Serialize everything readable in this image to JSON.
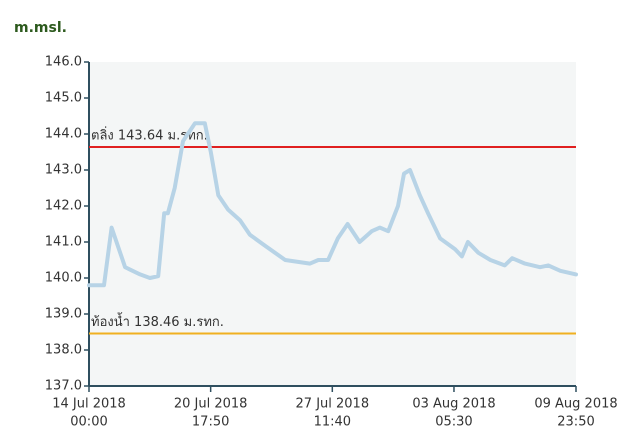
{
  "chart_data": {
    "type": "line",
    "ylabel": "m.msl.",
    "x": [
      "2018-07-14 00:00",
      "2018-07-14 20:00",
      "2018-07-15 06:00",
      "2018-07-16 00:00",
      "2018-07-16 20:00",
      "2018-07-17 09:00",
      "2018-07-17 20:00",
      "2018-07-18 04:00",
      "2018-07-18 09:00",
      "2018-07-18 18:00",
      "2018-07-19 05:00",
      "2018-07-19 21:00",
      "2018-07-20 10:00",
      "2018-07-20 18:00",
      "2018-07-21 04:00",
      "2018-07-21 17:00",
      "2018-07-22 09:00",
      "2018-07-22 22:00",
      "2018-07-23 18:00",
      "2018-07-24 21:00",
      "2018-07-26 06:00",
      "2018-07-26 17:00",
      "2018-07-27 06:00",
      "2018-07-27 19:00",
      "2018-07-28 08:00",
      "2018-07-29 00:00",
      "2018-07-29 16:00",
      "2018-07-30 03:00",
      "2018-07-30 14:00",
      "2018-07-31 03:00",
      "2018-07-31 11:00",
      "2018-07-31 19:00",
      "2018-08-01 08:00",
      "2018-08-01 19:00",
      "2018-08-02 11:00",
      "2018-08-03 07:00",
      "2018-08-03 16:00",
      "2018-08-04 00:00",
      "2018-08-04 14:00",
      "2018-08-05 06:00",
      "2018-08-06 01:00",
      "2018-08-06 11:00",
      "2018-08-07 04:00",
      "2018-08-08 00:00",
      "2018-08-08 11:00",
      "2018-08-09 03:00",
      "2018-08-09 23:50"
    ],
    "series": [
      {
        "color": "#b7d3e6",
        "values": [
          139.8,
          139.8,
          141.4,
          140.3,
          140.1,
          140.0,
          140.05,
          141.8,
          141.8,
          142.5,
          143.8,
          144.3,
          144.3,
          143.5,
          142.3,
          141.9,
          141.6,
          141.2,
          140.9,
          140.5,
          140.4,
          140.5,
          140.5,
          141.1,
          141.5,
          141.0,
          141.3,
          141.4,
          141.3,
          142.0,
          142.9,
          143.0,
          142.3,
          141.8,
          141.1,
          140.8,
          140.6,
          141.0,
          140.7,
          140.5,
          140.35,
          140.55,
          140.4,
          140.3,
          140.35,
          140.2,
          140.1
        ]
      }
    ],
    "xlim": [
      "2018-07-14 00:00",
      "2018-08-09 23:50"
    ],
    "xticks": [
      {
        "value": "2018-07-14 00:00",
        "label": [
          "14 Jul 2018",
          "00:00"
        ]
      },
      {
        "value": "2018-07-20 17:50",
        "label": [
          "20 Jul 2018",
          "17:50"
        ]
      },
      {
        "value": "2018-07-27 11:40",
        "label": [
          "27 Jul 2018",
          "11:40"
        ]
      },
      {
        "value": "2018-08-03 05:30",
        "label": [
          "03 Aug 2018",
          "05:30"
        ]
      },
      {
        "value": "2018-08-09 23:50",
        "label": [
          "09 Aug 2018",
          "23:50"
        ]
      }
    ],
    "ylim": [
      137,
      146
    ],
    "yticks": [
      {
        "value": 137,
        "label": "137.0"
      },
      {
        "value": 138,
        "label": "138.0"
      },
      {
        "value": 139,
        "label": "139.0"
      },
      {
        "value": 140,
        "label": "140.0"
      },
      {
        "value": 141,
        "label": "141.0"
      },
      {
        "value": 142,
        "label": "142.0"
      },
      {
        "value": 143,
        "label": "143.0"
      },
      {
        "value": 144,
        "label": "144.0"
      },
      {
        "value": 145,
        "label": "145.0"
      },
      {
        "value": 146,
        "label": "146.0"
      }
    ],
    "reference_lines": [
      {
        "value": 143.64,
        "label": "ตลิ่ง 143.64 ม.รทก.",
        "color": "#e02020"
      },
      {
        "value": 138.46,
        "label": "ท้องน้ำ 138.46 ม.รทก.",
        "color": "#f0b020"
      }
    ]
  }
}
